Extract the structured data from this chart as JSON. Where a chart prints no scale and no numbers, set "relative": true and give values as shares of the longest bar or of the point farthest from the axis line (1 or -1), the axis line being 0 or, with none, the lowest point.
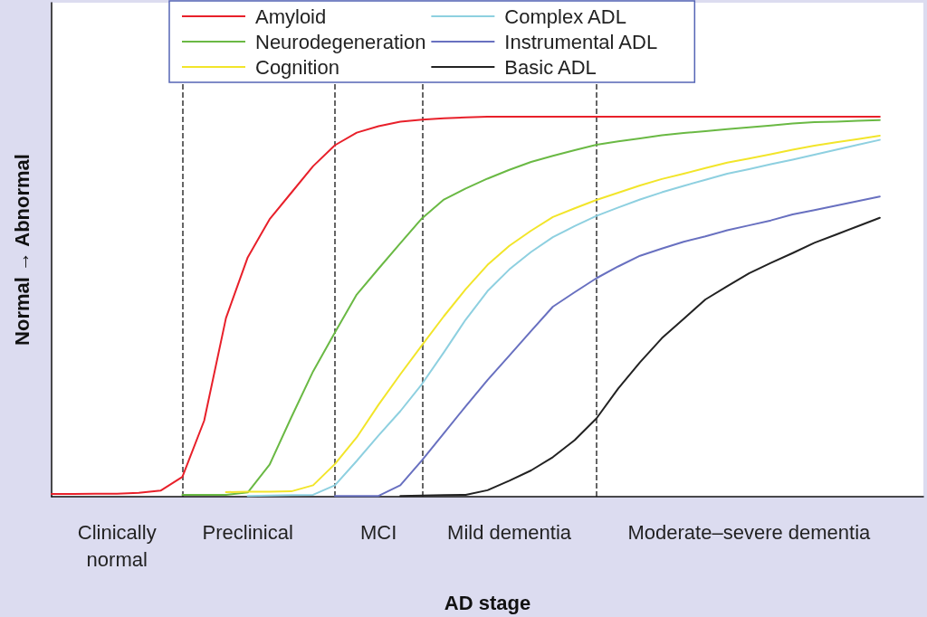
{
  "chart_data": {
    "type": "line",
    "relative": true,
    "xlabel": "AD stage",
    "ylabel": "Normal → Abnormal",
    "legend": "top",
    "marker": "none",
    "line_style": "solid",
    "categories": [
      null,
      null,
      null,
      "Clinically normal",
      null,
      null,
      null,
      null,
      null,
      "Preclinical",
      null,
      null,
      null,
      null,
      null,
      "MCI",
      null,
      null,
      null,
      null,
      null,
      "Mild dementia",
      null,
      null,
      null,
      null,
      null,
      null,
      null,
      null,
      null,
      null,
      "Moderate–severe dementia",
      null,
      null,
      null,
      null,
      null,
      null,
      null,
      null
    ],
    "grid": "x",
    "series": [
      {
        "name": "Amyloid",
        "color": "#e8202a",
        "values": [
          0.007,
          0.007,
          0.008,
          0.008,
          0.01,
          0.016,
          0.052,
          0.2,
          0.47,
          0.63,
          0.73,
          0.8,
          0.87,
          0.925,
          0.958,
          0.975,
          0.987,
          0.992,
          0.996,
          0.998,
          1,
          1,
          1,
          1,
          1,
          1,
          1,
          1,
          1,
          1,
          1,
          1,
          1,
          1,
          1,
          1,
          1,
          1,
          1,
          null,
          null
        ]
      },
      {
        "name": "Neurodegeneration",
        "color": "#6ab944",
        "values": [
          null,
          null,
          null,
          null,
          null,
          null,
          0.005,
          0.005,
          0.005,
          0.011,
          0.084,
          0.209,
          0.33,
          0.432,
          0.532,
          0.6,
          0.667,
          0.733,
          0.782,
          0.811,
          0.837,
          0.86,
          0.881,
          0.897,
          0.912,
          0.926,
          0.935,
          0.943,
          0.951,
          0.957,
          0.962,
          0.967,
          0.972,
          0.977,
          0.982,
          0.986,
          0.987,
          0.989,
          0.991,
          null,
          null
        ]
      },
      {
        "name": "Cognition",
        "color": "#f2e52a",
        "values": [
          null,
          null,
          null,
          null,
          null,
          null,
          null,
          null,
          0.012,
          0.013,
          0.013,
          0.014,
          0.03,
          0.086,
          0.156,
          0.242,
          0.322,
          0.399,
          0.475,
          0.546,
          0.61,
          0.66,
          0.7,
          0.736,
          0.759,
          0.781,
          0.8,
          0.819,
          0.836,
          0.85,
          0.865,
          0.879,
          0.89,
          0.901,
          0.913,
          0.924,
          0.933,
          0.941,
          0.95,
          null,
          null
        ]
      },
      {
        "name": "Complex ADL",
        "color": "#8ed0e0",
        "values": [
          null,
          null,
          null,
          null,
          null,
          null,
          null,
          null,
          null,
          0.002,
          0.003,
          0.004,
          0.005,
          0.03,
          0.094,
          0.161,
          0.225,
          0.297,
          0.38,
          0.466,
          0.541,
          0.598,
          0.644,
          0.683,
          0.712,
          0.739,
          0.761,
          0.782,
          0.801,
          0.818,
          0.834,
          0.85,
          0.862,
          0.875,
          0.887,
          0.9,
          0.913,
          0.926,
          0.939,
          null,
          null
        ]
      },
      {
        "name": "Instrumental ADL",
        "color": "#6870c0",
        "values": [
          null,
          null,
          null,
          null,
          null,
          null,
          null,
          null,
          null,
          null,
          null,
          null,
          null,
          0.002,
          0.002,
          0.002,
          0.03,
          0.096,
          0.167,
          0.238,
          0.307,
          0.371,
          0.436,
          0.5,
          0.538,
          0.575,
          0.606,
          0.634,
          0.653,
          0.671,
          0.685,
          0.701,
          0.714,
          0.727,
          0.743,
          0.754,
          0.766,
          0.778,
          0.79,
          null,
          null
        ]
      },
      {
        "name": "Basic ADL",
        "color": "#222222",
        "values": [
          null,
          null,
          null,
          null,
          null,
          null,
          null,
          null,
          null,
          null,
          null,
          null,
          null,
          null,
          null,
          null,
          0.002,
          0.003,
          0.004,
          0.005,
          0.017,
          0.042,
          0.069,
          0.104,
          0.149,
          0.206,
          0.285,
          0.354,
          0.417,
          0.468,
          0.519,
          0.554,
          0.588,
          0.615,
          0.641,
          0.668,
          0.69,
          0.712,
          0.734,
          null,
          null
        ]
      }
    ]
  }
}
